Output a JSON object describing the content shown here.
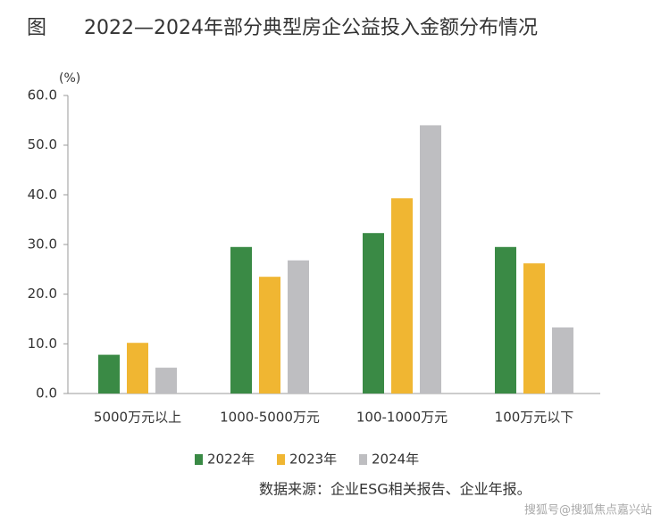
{
  "chart_data": {
    "type": "bar",
    "figure_label": "图",
    "title": "2022—2024年部分典型房企公益投入金额分布情况",
    "y_label": "(%)",
    "categories": [
      "5000万元以上",
      "1000-5000万元",
      "100-1000万元",
      "100万元以下"
    ],
    "series": [
      {
        "name": "2022年",
        "color": "#3a8a45",
        "values": [
          7.8,
          29.5,
          32.3,
          29.5
        ]
      },
      {
        "name": "2023年",
        "color": "#f0b632",
        "values": [
          10.2,
          23.5,
          39.3,
          26.2
        ]
      },
      {
        "name": "2024年",
        "color": "#bebec1",
        "values": [
          5.2,
          26.8,
          54.0,
          13.3
        ]
      }
    ],
    "ylim": [
      0,
      60
    ],
    "yticks": [
      {
        "value": 0,
        "label": "0.0"
      },
      {
        "value": 10,
        "label": "10.0"
      },
      {
        "value": 20,
        "label": "20.0"
      },
      {
        "value": 30,
        "label": "30.0"
      },
      {
        "value": 40,
        "label": "40.0"
      },
      {
        "value": 50,
        "label": "50.0"
      },
      {
        "value": 60,
        "label": "60.0"
      }
    ],
    "grid": false,
    "legend": "bottom",
    "source": "数据来源：企业ESG相关报告、企业年报。",
    "watermark": "搜狐号@搜狐焦点嘉兴站"
  }
}
